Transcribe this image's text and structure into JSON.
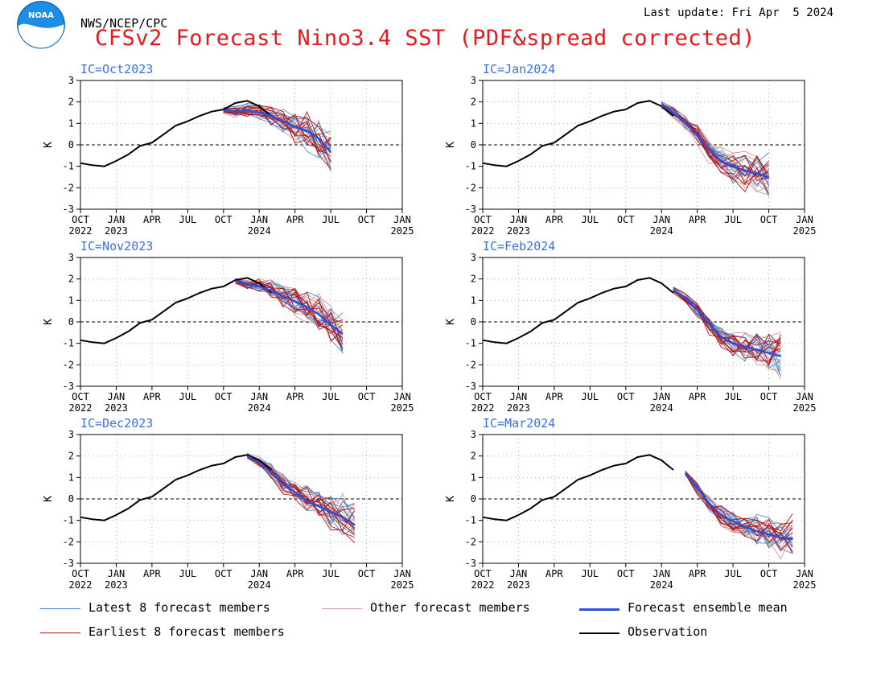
{
  "header": {
    "agency": "NWS/NCEP/CPC",
    "last_update": "Last update: Fri Apr  5 2024",
    "title": "CFSv2 Forecast Nino3.4 SST (PDF&spread corrected)",
    "logo_text": "NOAA"
  },
  "colors": {
    "title": "#e41a1c",
    "panel_label": "#3b6fe0",
    "observation": "#000000",
    "ensemble_mean": "#2b4fd6",
    "latest_members": "#3f7fd0",
    "earliest_members": "#b3141c",
    "other_members": "#c9948a",
    "zero_line": "#000000",
    "grid": "#b0b0b0"
  },
  "legend": [
    {
      "key": "latest",
      "label": "Latest 8 forecast members",
      "color": "#3f7fd0"
    },
    {
      "key": "other",
      "label": "Other forecast members",
      "color": "#c9948a"
    },
    {
      "key": "mean",
      "label": "Forecast ensemble mean",
      "color": "#2b4fd6"
    },
    {
      "key": "earliest",
      "label": "Earliest 8 forecast members",
      "color": "#b3141c"
    },
    {
      "key": "obs",
      "label": "Observation",
      "color": "#000000"
    }
  ],
  "chart_data": {
    "type": "line",
    "ylabel": "K",
    "ylim": [
      -3,
      3
    ],
    "yticks": [
      3,
      2,
      1,
      0,
      -1,
      -2,
      -3
    ],
    "xlim": [
      "2022-10",
      "2025-01"
    ],
    "xticks": [
      {
        "label": "OCT",
        "year": "2022"
      },
      {
        "label": "JAN",
        "year": "2023"
      },
      {
        "label": "APR",
        "year": ""
      },
      {
        "label": "JUL",
        "year": ""
      },
      {
        "label": "OCT",
        "year": ""
      },
      {
        "label": "JAN",
        "year": "2024"
      },
      {
        "label": "APR",
        "year": ""
      },
      {
        "label": "JUL",
        "year": ""
      },
      {
        "label": "OCT",
        "year": ""
      },
      {
        "label": "JAN",
        "year": "2025"
      }
    ],
    "grid": true,
    "observation": {
      "months": [
        "2022-10",
        "2022-11",
        "2022-12",
        "2023-01",
        "2023-02",
        "2023-03",
        "2023-04",
        "2023-05",
        "2023-06",
        "2023-07",
        "2023-08",
        "2023-09",
        "2023-10",
        "2023-11",
        "2023-12",
        "2024-01",
        "2024-02"
      ],
      "values": [
        -0.85,
        -0.95,
        -1.0,
        -0.75,
        -0.45,
        -0.05,
        0.1,
        0.5,
        0.9,
        1.1,
        1.35,
        1.55,
        1.65,
        1.95,
        2.05,
        1.8,
        1.35
      ]
    },
    "panels": [
      {
        "ic": "IC=Oct2023",
        "mean": {
          "months": [
            "2023-10",
            "2023-11",
            "2023-12",
            "2024-01",
            "2024-02",
            "2024-03",
            "2024-04",
            "2024-05",
            "2024-06",
            "2024-07"
          ],
          "values": [
            1.6,
            1.55,
            1.6,
            1.5,
            1.35,
            1.1,
            0.85,
            0.65,
            0.3,
            -0.35
          ]
        }
      },
      {
        "ic": "IC=Jan2024",
        "mean": {
          "months": [
            "2024-01",
            "2024-02",
            "2024-03",
            "2024-04",
            "2024-05",
            "2024-06",
            "2024-07",
            "2024-08",
            "2024-09",
            "2024-10"
          ],
          "values": [
            1.85,
            1.5,
            1.0,
            0.45,
            -0.2,
            -0.75,
            -1.0,
            -1.2,
            -1.35,
            -1.5
          ]
        }
      },
      {
        "ic": "IC=Nov2023",
        "mean": {
          "months": [
            "2023-11",
            "2023-12",
            "2024-01",
            "2024-02",
            "2024-03",
            "2024-04",
            "2024-05",
            "2024-06",
            "2024-07",
            "2024-08"
          ],
          "values": [
            1.9,
            1.75,
            1.65,
            1.45,
            1.2,
            0.95,
            0.7,
            0.35,
            -0.15,
            -0.55
          ]
        }
      },
      {
        "ic": "IC=Feb2024",
        "mean": {
          "months": [
            "2024-02",
            "2024-03",
            "2024-04",
            "2024-05",
            "2024-06",
            "2024-07",
            "2024-08",
            "2024-09",
            "2024-10",
            "2024-11"
          ],
          "values": [
            1.5,
            1.1,
            0.55,
            -0.1,
            -0.7,
            -1.0,
            -1.15,
            -1.3,
            -1.45,
            -1.6
          ]
        }
      },
      {
        "ic": "IC=Dec2023",
        "mean": {
          "months": [
            "2023-12",
            "2024-01",
            "2024-02",
            "2024-03",
            "2024-04",
            "2024-05",
            "2024-06",
            "2024-07",
            "2024-08",
            "2024-09"
          ],
          "values": [
            2.0,
            1.7,
            1.25,
            0.75,
            0.3,
            -0.1,
            -0.35,
            -0.6,
            -0.85,
            -1.2
          ]
        }
      },
      {
        "ic": "IC=Mar2024",
        "mean": {
          "months": [
            "2024-03",
            "2024-04",
            "2024-05",
            "2024-06",
            "2024-07",
            "2024-08",
            "2024-09",
            "2024-10",
            "2024-11",
            "2024-12"
          ],
          "values": [
            1.2,
            0.5,
            -0.2,
            -0.75,
            -1.05,
            -1.3,
            -1.5,
            -1.65,
            -1.8,
            -1.85
          ]
        }
      }
    ]
  }
}
